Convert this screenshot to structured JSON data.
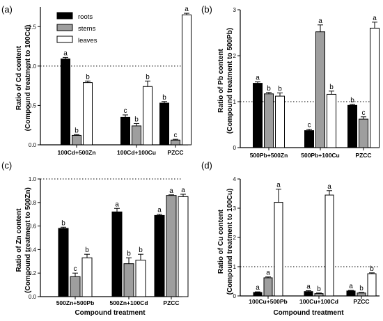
{
  "chart_data": [
    {
      "type": "bar",
      "panel": "(a)",
      "ylabel": "Ratio of Cd content",
      "ylabel2": "(Compound treatment to 100Cd)",
      "xlabel": "",
      "categories": [
        "100Cd+500Zn",
        "100Cd+100Cu",
        "PZCC"
      ],
      "ylim": [
        0,
        1.75
      ],
      "yticks": [
        "0.0",
        "0.5",
        "1.0",
        "1.5"
      ],
      "reference_line": 1.0,
      "legend": [
        "roots",
        "stems",
        "leaves"
      ],
      "legend_position": "top-left",
      "series": [
        {
          "name": "roots",
          "color": "#000000",
          "values": [
            1.09,
            0.35,
            0.53
          ],
          "errors": [
            0.02,
            0.03,
            0.02
          ],
          "letters": [
            "a",
            "c",
            "b"
          ]
        },
        {
          "name": "stems",
          "color": "#9e9e9e",
          "values": [
            0.12,
            0.24,
            0.06
          ],
          "errors": [
            0.01,
            0.03,
            0.01
          ],
          "letters": [
            "b",
            "b",
            "c"
          ]
        },
        {
          "name": "leaves",
          "color": "#ffffff",
          "values": [
            0.79,
            0.74,
            1.65
          ],
          "errors": [
            0.02,
            0.07,
            0.02
          ],
          "letters": [
            "b",
            "b",
            "a"
          ]
        }
      ]
    },
    {
      "type": "bar",
      "panel": "(b)",
      "ylabel": "Ratio of Pb content",
      "ylabel2": "(Compound treatment to 500Pb)",
      "xlabel": "",
      "categories": [
        "500Pb+500Zn",
        "500Pb+100Cu",
        "PZCC"
      ],
      "ylim": [
        0,
        3
      ],
      "yticks": [
        "0",
        "1",
        "2",
        "3"
      ],
      "reference_line": 1.0,
      "series": [
        {
          "name": "roots",
          "color": "#000000",
          "values": [
            1.4,
            0.37,
            0.92
          ],
          "errors": [
            0.03,
            0.03,
            0.02
          ],
          "letters": [
            "a",
            "c",
            "b"
          ]
        },
        {
          "name": "stems",
          "color": "#9e9e9e",
          "values": [
            1.17,
            2.52,
            0.62
          ],
          "errors": [
            0.03,
            0.15,
            0.05
          ],
          "letters": [
            "b",
            "a",
            "c"
          ]
        },
        {
          "name": "leaves",
          "color": "#ffffff",
          "values": [
            1.12,
            1.16,
            2.6
          ],
          "errors": [
            0.07,
            0.07,
            0.13
          ],
          "letters": [
            "b",
            "b",
            "a"
          ]
        }
      ]
    },
    {
      "type": "bar",
      "panel": "(c)",
      "ylabel": "Ratio of Zn content",
      "ylabel2": "(Compound treatment to 500Zn)",
      "xlabel": "Compound treatment",
      "categories": [
        "500Zn+500Pb",
        "500Zn+100Cd",
        "PZCC"
      ],
      "ylim": [
        0,
        1.0
      ],
      "yticks": [
        "0.0",
        "0.2",
        "0.4",
        "0.6",
        "0.8",
        "1.0"
      ],
      "reference_line": 1.0,
      "series": [
        {
          "name": "roots",
          "color": "#000000",
          "values": [
            0.58,
            0.72,
            0.69
          ],
          "errors": [
            0.01,
            0.03,
            0.01
          ],
          "letters": [
            "b",
            "a",
            "a"
          ]
        },
        {
          "name": "stems",
          "color": "#9e9e9e",
          "values": [
            0.17,
            0.28,
            0.86
          ],
          "errors": [
            0.03,
            0.05,
            0.005
          ],
          "letters": [
            "c",
            "b",
            "a"
          ]
        },
        {
          "name": "leaves",
          "color": "#ffffff",
          "values": [
            0.33,
            0.31,
            0.85
          ],
          "errors": [
            0.03,
            0.05,
            0.02
          ],
          "letters": [
            "b",
            "b",
            "a"
          ]
        }
      ]
    },
    {
      "type": "bar",
      "panel": "(d)",
      "ylabel": "Ratio of Cu content",
      "ylabel2": "(Compound treatment to 100Cu)",
      "xlabel": "Compound treatment",
      "categories": [
        "100Cu+500Pb",
        "100Cu+100Cd",
        "PZCC"
      ],
      "ylim": [
        0,
        4
      ],
      "yticks": [
        "0",
        "1",
        "2",
        "3",
        "4"
      ],
      "reference_line": 1.0,
      "series": [
        {
          "name": "roots",
          "color": "#000000",
          "values": [
            0.12,
            0.15,
            0.17
          ],
          "errors": [
            0.02,
            0.03,
            0.02
          ],
          "letters": [
            "a",
            "a",
            "a"
          ]
        },
        {
          "name": "stems",
          "color": "#9e9e9e",
          "values": [
            0.62,
            0.08,
            0.1
          ],
          "errors": [
            0.03,
            0.02,
            0.02
          ],
          "letters": [
            "a",
            "b",
            "b"
          ]
        },
        {
          "name": "leaves",
          "color": "#ffffff",
          "values": [
            3.2,
            3.45,
            0.76
          ],
          "errors": [
            0.45,
            0.15,
            0.03
          ],
          "letters": [
            "a",
            "a",
            "b"
          ]
        }
      ]
    }
  ]
}
